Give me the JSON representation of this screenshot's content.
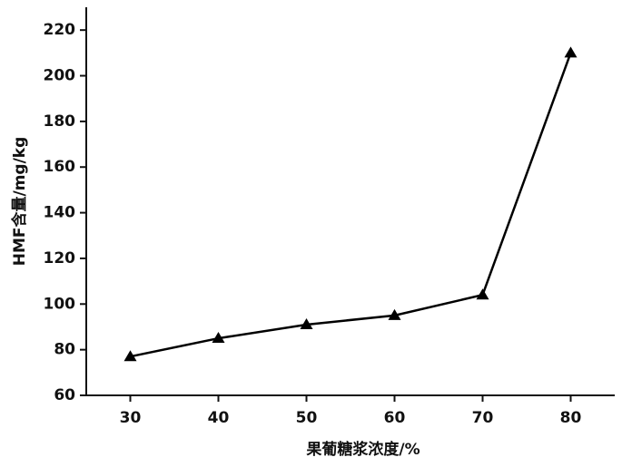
{
  "chart_data": {
    "type": "line",
    "x_label": "果葡糖浆浓度/%",
    "y_label": "HMF含量/mg/kg",
    "x": [
      30,
      40,
      50,
      60,
      70,
      80
    ],
    "series": [
      {
        "values": [
          77,
          85,
          91,
          95,
          104,
          210
        ],
        "color": "#000000"
      }
    ],
    "xlim": [
      25,
      85
    ],
    "xticks": [
      30,
      40,
      50,
      60,
      70,
      80
    ],
    "ylim": [
      60,
      230
    ],
    "yticks": [
      60,
      80,
      100,
      120,
      140,
      160,
      180,
      200,
      220
    ]
  }
}
